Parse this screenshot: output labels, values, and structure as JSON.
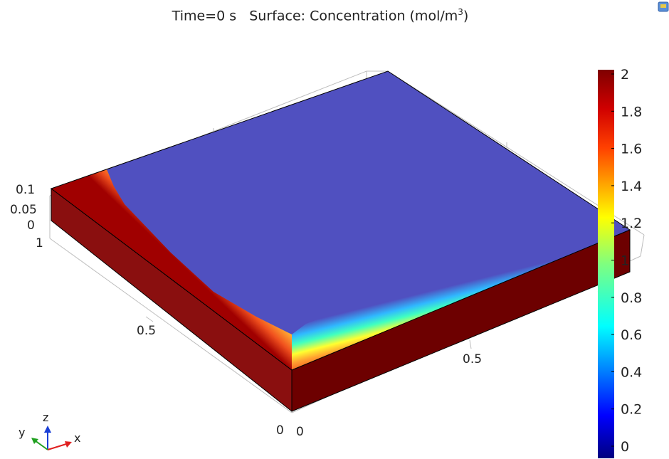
{
  "title": {
    "time_label": "Time=0 s",
    "surface_label": "Surface: Concentration (mol/m",
    "unit_exponent": "3",
    "unit_close": ")"
  },
  "axes_triad": {
    "x": "x",
    "y": "y",
    "z": "z"
  },
  "icons": {
    "corner": "toolbar-icon"
  },
  "chart_data": {
    "type": "heatmap",
    "title": "Time=0 s   Surface: Concentration (mol/m³)",
    "colormap": "rainbow",
    "colorbar": {
      "min": 0,
      "max": 2,
      "ticks": [
        0,
        0.2,
        0.4,
        0.6,
        0.8,
        1,
        1.2,
        1.4,
        1.6,
        1.8,
        2
      ],
      "tick_labels": [
        "0",
        "0.2",
        "0.4",
        "0.6",
        "0.8",
        "1",
        "1.2",
        "1.4",
        "1.6",
        "1.8",
        "2"
      ]
    },
    "x_axis": {
      "ticks": [
        "0",
        "0.5"
      ],
      "range": [
        0,
        1
      ]
    },
    "y_axis": {
      "ticks": [
        "0",
        "0.5",
        "1"
      ],
      "range": [
        0,
        1
      ]
    },
    "z_axis": {
      "ticks": [
        "0",
        "0.05",
        "0.1"
      ],
      "range": [
        0,
        0.1
      ]
    },
    "field_description": {
      "interior_value": 0,
      "boundary_value": 2,
      "high_edges": [
        "x=0 edge",
        "y=0 edge"
      ]
    }
  }
}
